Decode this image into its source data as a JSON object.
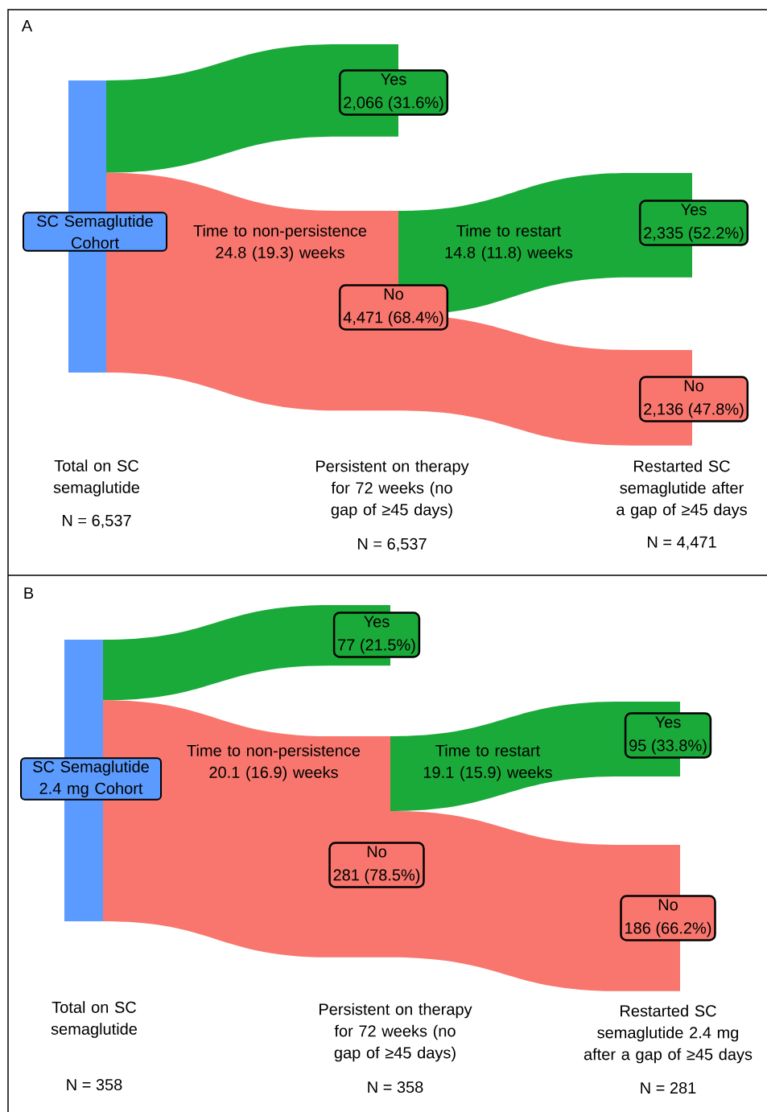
{
  "chart_data": [
    {
      "type": "other",
      "title": "A",
      "categories": [
        "Yes",
        "No",
        "Yes",
        "No"
      ],
      "values": [
        2066,
        4471,
        2335,
        2136
      ],
      "value_labels": [
        "2,066 (31.6%)",
        "4,471 (68.4%)",
        "2,335 (52.2%)",
        "2,136 (47.8%)"
      ],
      "colors": [
        "#1aaa3a",
        "#f8766d",
        "#1aaa3a",
        "#f8766d"
      ],
      "color": "#5b9bff",
      "annotations": [
        "SC Semaglutide Cohort",
        "Time to non-persistence 24.8 (19.3) weeks",
        "Time to restart 14.8 (11.8) weeks",
        "Total on SC semaglutide",
        "N = 6,537",
        "Persistent on therapy for 72 weeks (no gap of ≥45 days)",
        "N = 6,537",
        "Restarted SC semaglutide after a gap of ≥45 days",
        "N = 4,471"
      ]
    },
    {
      "type": "other",
      "title": "B",
      "categories": [
        "Yes",
        "No",
        "Yes",
        "No"
      ],
      "values": [
        77,
        281,
        95,
        186
      ],
      "value_labels": [
        "77 (21.5%)",
        "281 (78.5%)",
        "95 (33.8%)",
        "186 (66.2%)"
      ],
      "colors": [
        "#1aaa3a",
        "#f8766d",
        "#1aaa3a",
        "#f8766d"
      ],
      "color": "#5b9bff",
      "annotations": [
        "SC Semaglutide 2.4 mg Cohort",
        "Time to non-persistence 20.1 (16.9) weeks",
        "Time to restart 19.1 (15.9) weeks",
        "Total on SC semaglutide",
        "N = 358",
        "Persistent on therapy for 72 weeks (no gap of ≥45 days)",
        "N = 358",
        "Restarted SC semaglutide 2.4 mg after a gap of ≥45 days",
        "N = 281"
      ]
    }
  ]
}
